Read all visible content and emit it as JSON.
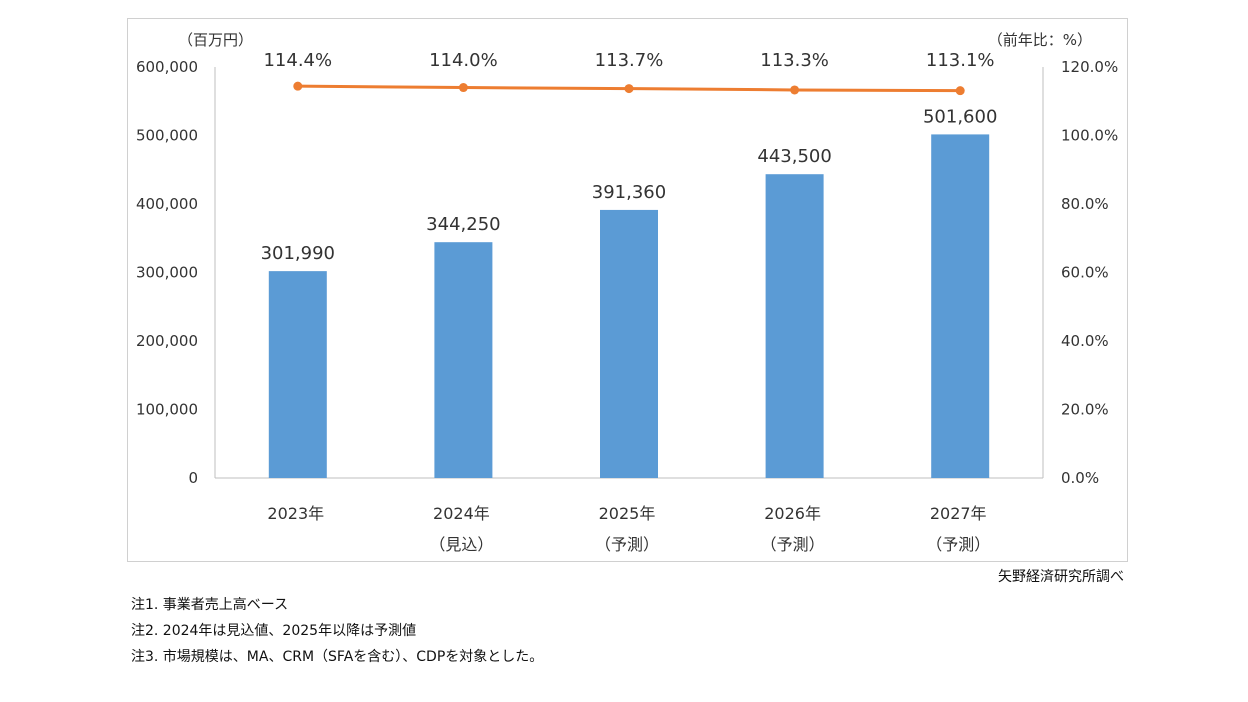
{
  "chart_data": {
    "type": "bar+line",
    "categories": [
      [
        "2023年",
        ""
      ],
      [
        "2024年",
        "（見込）"
      ],
      [
        "2025年",
        "（予測）"
      ],
      [
        "2026年",
        "（予測）"
      ],
      [
        "2027年",
        "（予測）"
      ]
    ],
    "series": [
      {
        "type": "bar",
        "axis": "left",
        "values": [
          301990,
          344250,
          391360,
          443500,
          501600
        ],
        "labels": [
          "301,990",
          "344,250",
          "391,360",
          "443,500",
          "501,600"
        ],
        "color": "#5B9BD5"
      },
      {
        "type": "line",
        "axis": "right",
        "values": [
          114.4,
          114.0,
          113.7,
          113.3,
          113.1
        ],
        "labels": [
          "114.4%",
          "114.0%",
          "113.7%",
          "113.3%",
          "113.1%"
        ],
        "color": "#ED7D31"
      }
    ],
    "left_axis": {
      "unit_label": "（百万円）",
      "ylim": [
        0,
        600000
      ],
      "ticks": [
        "0",
        "100,000",
        "200,000",
        "300,000",
        "400,000",
        "500,000",
        "600,000"
      ]
    },
    "right_axis": {
      "unit_label": "（前年比：%）",
      "ylim": [
        0,
        120
      ],
      "ticks": [
        "0.0%",
        "20.0%",
        "40.0%",
        "60.0%",
        "80.0%",
        "100.0%",
        "120.0%"
      ]
    },
    "grid": false,
    "legend": "none"
  },
  "source": "矢野経済研究所調べ",
  "notes": [
    "注1.  事業者売上高ベース",
    "注2.  2024年は見込値、2025年以降は予測値",
    "注3.  市場規模は、MA、CRM（SFAを含む）、CDPを対象とした。"
  ]
}
